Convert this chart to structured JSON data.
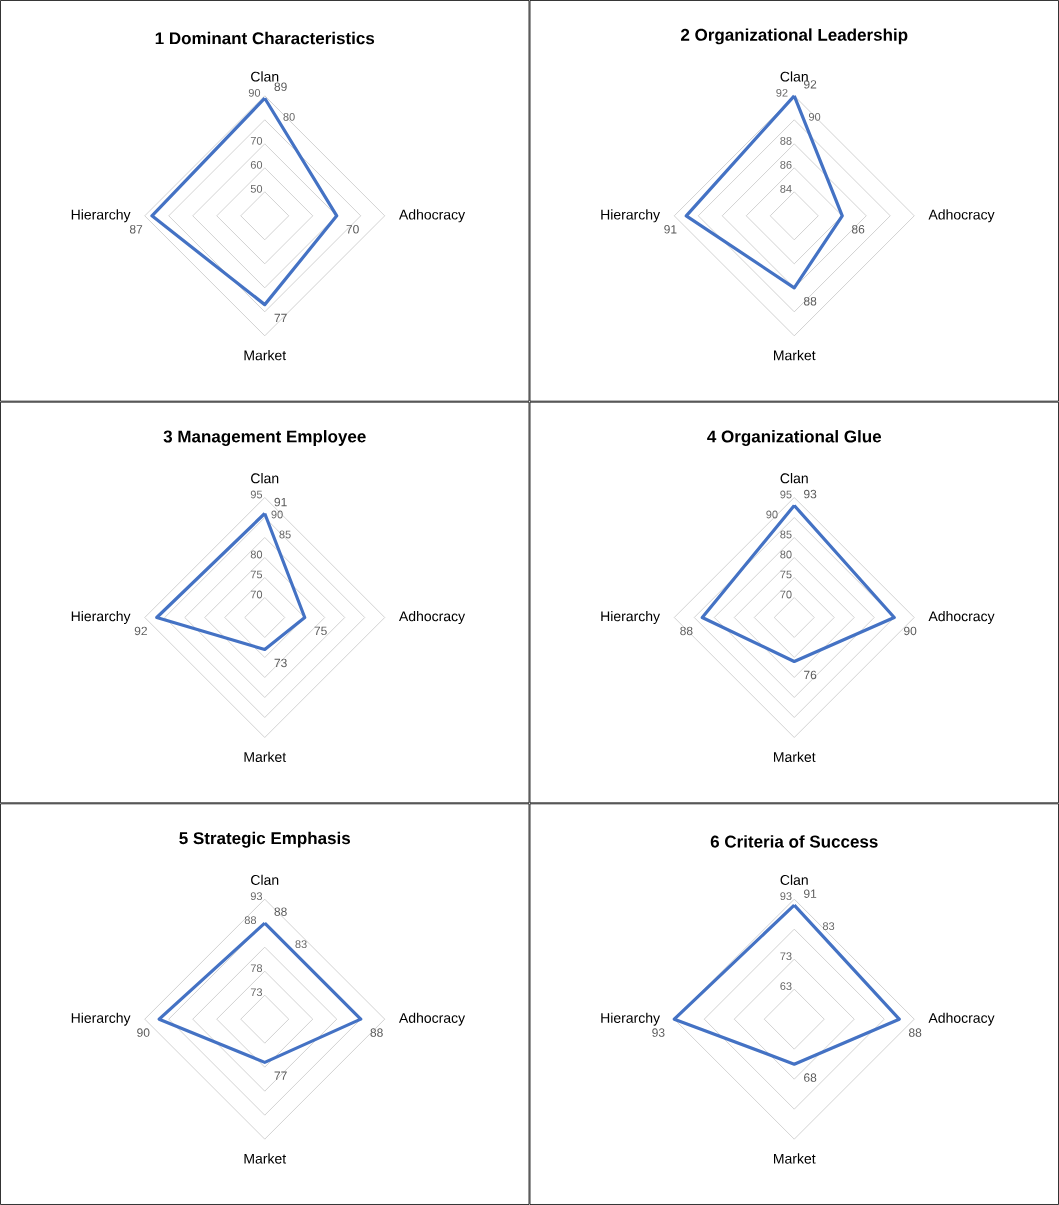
{
  "chart_data": [
    {
      "type": "radar",
      "title": "1 Dominant Characteristics",
      "categories": [
        "Clan",
        "Adhocracy",
        "Market",
        "Hierarchy"
      ],
      "series": [
        {
          "color": "#4472c4",
          "values": [
            89,
            70,
            77,
            87
          ]
        }
      ],
      "ylim": [
        40,
        90
      ],
      "yticks": [
        50,
        60,
        70,
        80,
        90
      ],
      "grid": true,
      "data_labels": true
    },
    {
      "type": "radar",
      "title": "2 Organizational Leadership",
      "categories": [
        "Clan",
        "Adhocracy",
        "Market",
        "Hierarchy"
      ],
      "series": [
        {
          "color": "#4472c4",
          "values": [
            92,
            86,
            88,
            91
          ]
        }
      ],
      "ylim": [
        82,
        92
      ],
      "yticks": [
        84,
        86,
        88,
        90,
        92
      ],
      "grid": true,
      "data_labels": true
    },
    {
      "type": "radar",
      "title": "3 Management Employee",
      "categories": [
        "Clan",
        "Adhocracy",
        "Market",
        "Hierarchy"
      ],
      "series": [
        {
          "color": "#4472c4",
          "values": [
            91,
            75,
            73,
            92
          ]
        }
      ],
      "ylim": [
        65,
        95
      ],
      "yticks": [
        70,
        75,
        80,
        85,
        90,
        95
      ],
      "grid": true,
      "data_labels": true
    },
    {
      "type": "radar",
      "title": "4 Organizational Glue",
      "categories": [
        "Clan",
        "Adhocracy",
        "Market",
        "Hierarchy"
      ],
      "series": [
        {
          "color": "#4472c4",
          "values": [
            93,
            90,
            76,
            88
          ]
        }
      ],
      "ylim": [
        65,
        95
      ],
      "yticks": [
        70,
        75,
        80,
        85,
        90,
        95
      ],
      "grid": true,
      "data_labels": true
    },
    {
      "type": "radar",
      "title": "5 Strategic Emphasis",
      "categories": [
        "Clan",
        "Adhocracy",
        "Market",
        "Hierarchy"
      ],
      "series": [
        {
          "color": "#4472c4",
          "values": [
            88,
            88,
            77,
            90
          ]
        }
      ],
      "ylim": [
        68,
        93
      ],
      "yticks": [
        73,
        78,
        83,
        88,
        93
      ],
      "grid": true,
      "data_labels": true
    },
    {
      "type": "radar",
      "title": "6 Criteria of Success",
      "categories": [
        "Clan",
        "Adhocracy",
        "Market",
        "Hierarchy"
      ],
      "series": [
        {
          "color": "#4472c4",
          "values": [
            91,
            88,
            68,
            93
          ]
        }
      ],
      "ylim": [
        53,
        93
      ],
      "yticks": [
        63,
        73,
        83,
        93
      ],
      "grid": true,
      "data_labels": true
    }
  ]
}
